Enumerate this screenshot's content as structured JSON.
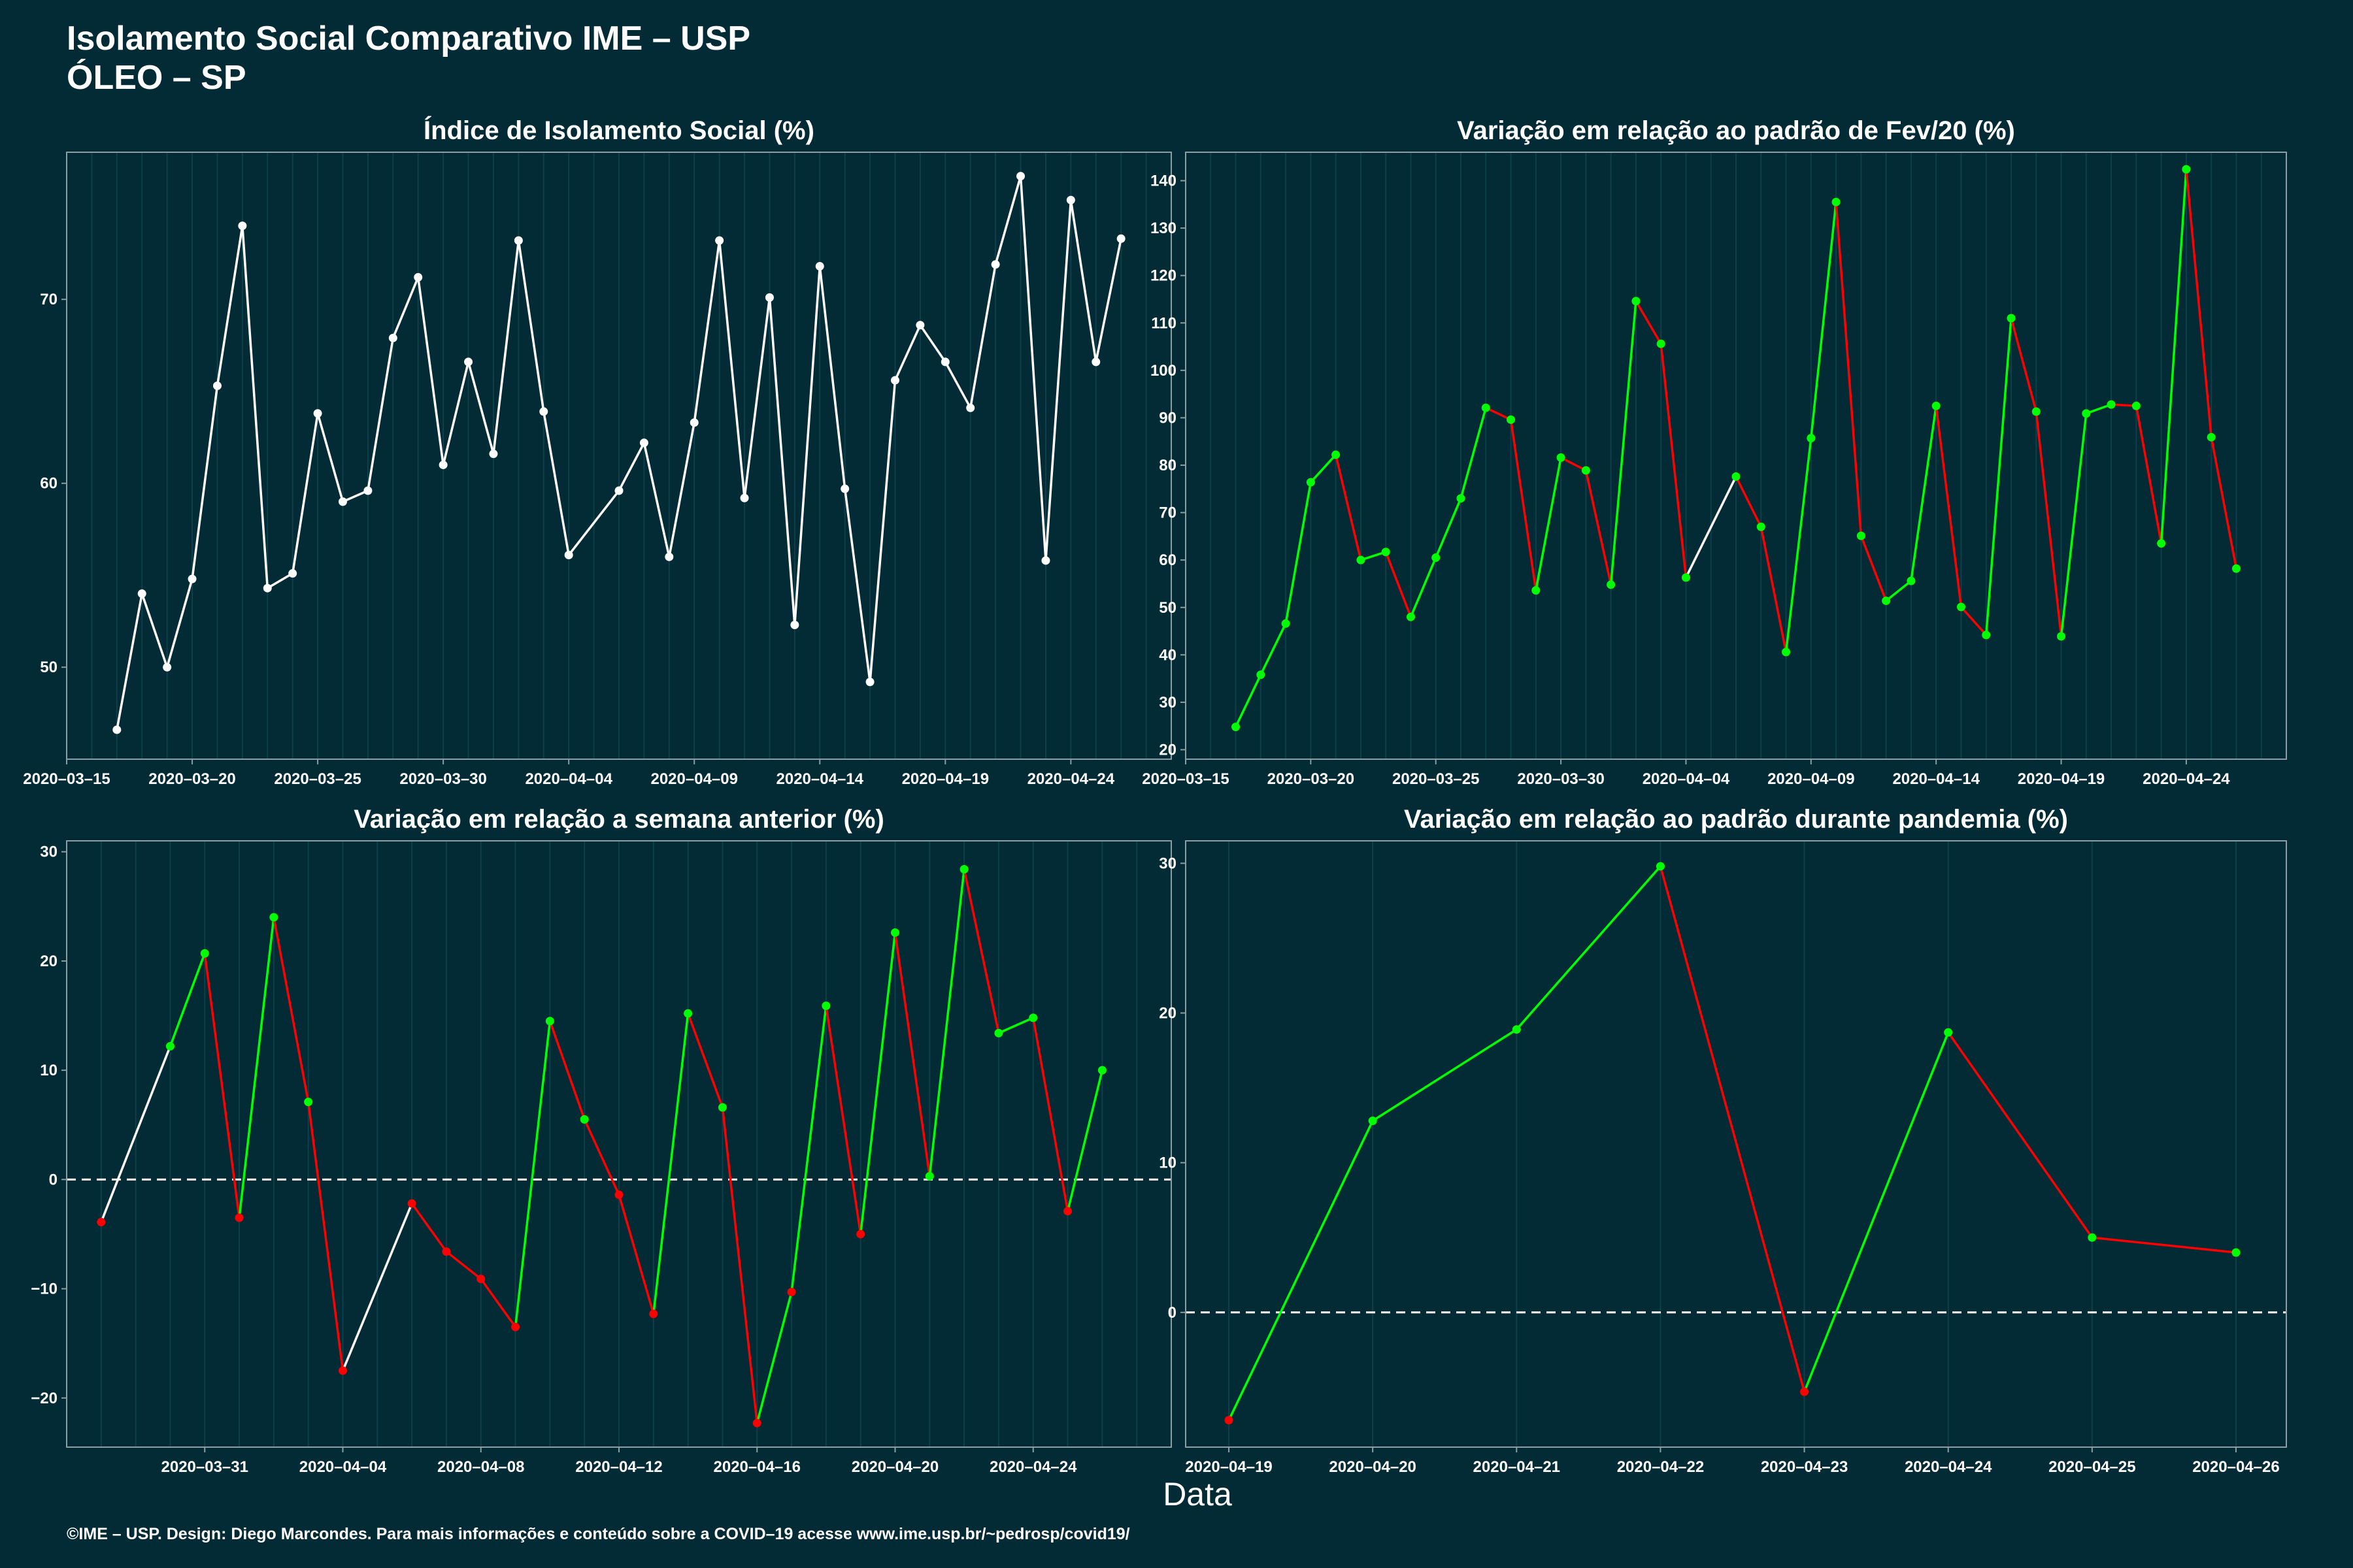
{
  "header": {
    "title_line1": "Isolamento Social Comparativo IME – USP",
    "title_line2": "ÓLEO – SP"
  },
  "x_axis_title": "Data",
  "footer": "©IME – USP. Design: Diego Marcondes. Para mais informações e conteúdo sobre a COVID–19 acesse www.ime.usp.br/~pedrosp/covid19/",
  "colors": {
    "background": "#022b35",
    "white": "#ffffff",
    "green": "#00ff00",
    "red": "#ff0000",
    "grid": "#0e3f4a"
  },
  "chart_data": [
    {
      "type": "line",
      "title": "Índice de Isolamento Social (%)",
      "xlabel": "Data",
      "ylabel": "",
      "xlim": [
        "2020-03-15",
        "2020-04-28"
      ],
      "ylim": [
        45,
        78
      ],
      "x_ticks": [
        "2020-03-15",
        "2020-03-20",
        "2020-03-25",
        "2020-03-30",
        "2020-04-04",
        "2020-04-09",
        "2020-04-14",
        "2020-04-19",
        "2020-04-24"
      ],
      "y_ticks": [
        50,
        60,
        70
      ],
      "series": [
        {
          "points": [
            {
              "x": "2020-03-17",
              "y": 46.6
            },
            {
              "x": "2020-03-18",
              "y": 54.0
            },
            {
              "x": "2020-03-19",
              "y": 50.0
            },
            {
              "x": "2020-03-20",
              "y": 54.8
            },
            {
              "x": "2020-03-21",
              "y": 65.3
            },
            {
              "x": "2020-03-22",
              "y": 74.0
            },
            {
              "x": "2020-03-23",
              "y": 54.3
            },
            {
              "x": "2020-03-24",
              "y": 55.1
            },
            {
              "x": "2020-03-25",
              "y": 63.8
            },
            {
              "x": "2020-03-26",
              "y": 59.0
            },
            {
              "x": "2020-03-27",
              "y": 59.6
            },
            {
              "x": "2020-03-28",
              "y": 67.9
            },
            {
              "x": "2020-03-29",
              "y": 71.2
            },
            {
              "x": "2020-03-30",
              "y": 61.0
            },
            {
              "x": "2020-03-31",
              "y": 66.6
            },
            {
              "x": "2020-04-01",
              "y": 61.6
            },
            {
              "x": "2020-04-02",
              "y": 73.2
            },
            {
              "x": "2020-04-03",
              "y": 63.9
            },
            {
              "x": "2020-04-04",
              "y": 56.1
            },
            {
              "x": "2020-04-06",
              "y": 59.6
            },
            {
              "x": "2020-04-07",
              "y": 62.2
            },
            {
              "x": "2020-04-08",
              "y": 56.0
            },
            {
              "x": "2020-04-09",
              "y": 63.3
            },
            {
              "x": "2020-04-10",
              "y": 73.2
            },
            {
              "x": "2020-04-11",
              "y": 59.2
            },
            {
              "x": "2020-04-12",
              "y": 70.1
            },
            {
              "x": "2020-04-13",
              "y": 52.3
            },
            {
              "x": "2020-04-14",
              "y": 71.8
            },
            {
              "x": "2020-04-15",
              "y": 59.7
            },
            {
              "x": "2020-04-16",
              "y": 49.2
            },
            {
              "x": "2020-04-17",
              "y": 65.6
            },
            {
              "x": "2020-04-18",
              "y": 68.6
            },
            {
              "x": "2020-04-19",
              "y": 66.6
            },
            {
              "x": "2020-04-20",
              "y": 64.1
            },
            {
              "x": "2020-04-21",
              "y": 71.9
            },
            {
              "x": "2020-04-22",
              "y": 76.7
            },
            {
              "x": "2020-04-23",
              "y": 55.8
            },
            {
              "x": "2020-04-24",
              "y": 75.4
            },
            {
              "x": "2020-04-25",
              "y": 66.6
            },
            {
              "x": "2020-04-26",
              "y": 73.3
            }
          ]
        }
      ]
    },
    {
      "type": "line",
      "title": "Variação em relação ao padrão de Fev/20 (%)",
      "xlabel": "Data",
      "ylabel": "",
      "xlim": [
        "2020-03-15",
        "2020-04-28"
      ],
      "ylim": [
        18,
        146
      ],
      "x_ticks": [
        "2020-03-15",
        "2020-03-20",
        "2020-03-25",
        "2020-03-30",
        "2020-04-04",
        "2020-04-09",
        "2020-04-14",
        "2020-04-19",
        "2020-04-24"
      ],
      "y_ticks": [
        20,
        30,
        40,
        50,
        60,
        70,
        80,
        90,
        100,
        110,
        120,
        130,
        140
      ],
      "series": [
        {
          "points": [
            {
              "x": "2020-03-17",
              "y": 24.8,
              "c": "green"
            },
            {
              "x": "2020-03-18",
              "y": 35.8,
              "c": "green"
            },
            {
              "x": "2020-03-19",
              "y": 46.6,
              "c": "green"
            },
            {
              "x": "2020-03-20",
              "y": 76.4,
              "c": "green"
            },
            {
              "x": "2020-03-21",
              "y": 82.2,
              "c": "green"
            },
            {
              "x": "2020-03-22",
              "y": 60.0,
              "c": "green"
            },
            {
              "x": "2020-03-23",
              "y": 61.7,
              "c": "green"
            },
            {
              "x": "2020-03-24",
              "y": 48.0,
              "c": "green"
            },
            {
              "x": "2020-03-25",
              "y": 60.5,
              "c": "green"
            },
            {
              "x": "2020-03-26",
              "y": 73.0,
              "c": "green"
            },
            {
              "x": "2020-03-27",
              "y": 92.1,
              "c": "green"
            },
            {
              "x": "2020-03-28",
              "y": 89.6,
              "c": "green"
            },
            {
              "x": "2020-03-29",
              "y": 53.6,
              "c": "green"
            },
            {
              "x": "2020-03-30",
              "y": 81.6,
              "c": "green"
            },
            {
              "x": "2020-03-31",
              "y": 78.9,
              "c": "green"
            },
            {
              "x": "2020-04-01",
              "y": 54.8,
              "c": "green"
            },
            {
              "x": "2020-04-02",
              "y": 114.6,
              "c": "green"
            },
            {
              "x": "2020-04-03",
              "y": 105.6,
              "c": "green"
            },
            {
              "x": "2020-04-04",
              "y": 56.3,
              "c": "green"
            },
            {
              "x": "2020-04-06",
              "y": 77.6,
              "c": "green"
            },
            {
              "x": "2020-04-07",
              "y": 67.0,
              "c": "green"
            },
            {
              "x": "2020-04-08",
              "y": 40.6,
              "c": "green"
            },
            {
              "x": "2020-04-09",
              "y": 85.7,
              "c": "green"
            },
            {
              "x": "2020-04-10",
              "y": 135.5,
              "c": "green"
            },
            {
              "x": "2020-04-11",
              "y": 65.1,
              "c": "green"
            },
            {
              "x": "2020-04-12",
              "y": 51.4,
              "c": "green"
            },
            {
              "x": "2020-04-13",
              "y": 55.6,
              "c": "green"
            },
            {
              "x": "2020-04-14",
              "y": 92.5,
              "c": "green"
            },
            {
              "x": "2020-04-15",
              "y": 50.1,
              "c": "green"
            },
            {
              "x": "2020-04-16",
              "y": 44.2,
              "c": "green"
            },
            {
              "x": "2020-04-17",
              "y": 111.0,
              "c": "green"
            },
            {
              "x": "2020-04-18",
              "y": 91.3,
              "c": "green"
            },
            {
              "x": "2020-04-19",
              "y": 43.9,
              "c": "green"
            },
            {
              "x": "2020-04-20",
              "y": 90.9,
              "c": "green"
            },
            {
              "x": "2020-04-21",
              "y": 92.8,
              "c": "green"
            },
            {
              "x": "2020-04-22",
              "y": 92.5,
              "c": "green"
            },
            {
              "x": "2020-04-23",
              "y": 63.5,
              "c": "green"
            },
            {
              "x": "2020-04-24",
              "y": 142.4,
              "c": "green"
            },
            {
              "x": "2020-04-25",
              "y": 85.9,
              "c": "green"
            },
            {
              "x": "2020-04-26",
              "y": 58.2,
              "c": "green"
            }
          ]
        }
      ]
    },
    {
      "type": "line",
      "title": "Variação em relação a semana anterior (%)",
      "xlabel": "Data",
      "ylabel": "",
      "xlim": [
        "2020-03-27",
        "2020-04-28"
      ],
      "ylim": [
        -24.5,
        31
      ],
      "x_ticks": [
        "2020-03-31",
        "2020-04-04",
        "2020-04-08",
        "2020-04-12",
        "2020-04-16",
        "2020-04-20",
        "2020-04-24"
      ],
      "y_ticks": [
        -20,
        -10,
        0,
        10,
        20,
        30
      ],
      "reference_line": 0,
      "series": [
        {
          "points": [
            {
              "x": "2020-03-28",
              "y": -3.9,
              "c": "red"
            },
            {
              "x": "2020-03-30",
              "y": 12.2,
              "c": "green"
            },
            {
              "x": "2020-03-31",
              "y": 20.7,
              "c": "green"
            },
            {
              "x": "2020-04-01",
              "y": -3.5,
              "c": "red"
            },
            {
              "x": "2020-04-02",
              "y": 24.0,
              "c": "green"
            },
            {
              "x": "2020-04-03",
              "y": 7.1,
              "c": "green"
            },
            {
              "x": "2020-04-04",
              "y": -17.5,
              "c": "red"
            },
            {
              "x": "2020-04-06",
              "y": -2.2,
              "c": "red"
            },
            {
              "x": "2020-04-07",
              "y": -6.6,
              "c": "red"
            },
            {
              "x": "2020-04-08",
              "y": -9.1,
              "c": "red"
            },
            {
              "x": "2020-04-09",
              "y": -13.5,
              "c": "red"
            },
            {
              "x": "2020-04-10",
              "y": 14.5,
              "c": "green"
            },
            {
              "x": "2020-04-11",
              "y": 5.5,
              "c": "green"
            },
            {
              "x": "2020-04-12",
              "y": -1.4,
              "c": "red"
            },
            {
              "x": "2020-04-13",
              "y": -12.3,
              "c": "red"
            },
            {
              "x": "2020-04-14",
              "y": 15.2,
              "c": "green"
            },
            {
              "x": "2020-04-15",
              "y": 6.6,
              "c": "green"
            },
            {
              "x": "2020-04-16",
              "y": -22.3,
              "c": "red"
            },
            {
              "x": "2020-04-17",
              "y": -10.3,
              "c": "red"
            },
            {
              "x": "2020-04-18",
              "y": 15.9,
              "c": "green"
            },
            {
              "x": "2020-04-19",
              "y": -5.0,
              "c": "red"
            },
            {
              "x": "2020-04-20",
              "y": 22.6,
              "c": "green"
            },
            {
              "x": "2020-04-21",
              "y": 0.3,
              "c": "green"
            },
            {
              "x": "2020-04-22",
              "y": 28.4,
              "c": "green"
            },
            {
              "x": "2020-04-23",
              "y": 13.4,
              "c": "green"
            },
            {
              "x": "2020-04-24",
              "y": 14.8,
              "c": "green"
            },
            {
              "x": "2020-04-25",
              "y": -2.9,
              "c": "red"
            },
            {
              "x": "2020-04-26",
              "y": 10.0,
              "c": "green"
            }
          ]
        }
      ]
    },
    {
      "type": "line",
      "title": "Variação em relação ao padrão durante pandemia (%)",
      "xlabel": "Data",
      "ylabel": "",
      "xlim": [
        "2020-04-18.7",
        "2020-04-26.35"
      ],
      "ylim": [
        -9,
        31.5
      ],
      "x_ticks": [
        "2020-04-19",
        "2020-04-20",
        "2020-04-21",
        "2020-04-22",
        "2020-04-23",
        "2020-04-24",
        "2020-04-25",
        "2020-04-26"
      ],
      "y_ticks": [
        0,
        10,
        20,
        30
      ],
      "reference_line": 0,
      "series": [
        {
          "points": [
            {
              "x": "2020-04-19",
              "y": -7.2,
              "c": "red"
            },
            {
              "x": "2020-04-20",
              "y": 12.8,
              "c": "green"
            },
            {
              "x": "2020-04-21",
              "y": 18.9,
              "c": "green"
            },
            {
              "x": "2020-04-22",
              "y": 29.8,
              "c": "green"
            },
            {
              "x": "2020-04-23",
              "y": -5.3,
              "c": "red"
            },
            {
              "x": "2020-04-24",
              "y": 18.7,
              "c": "green"
            },
            {
              "x": "2020-04-25",
              "y": 5.0,
              "c": "green"
            },
            {
              "x": "2020-04-26",
              "y": 4.0,
              "c": "green"
            }
          ]
        }
      ]
    }
  ]
}
